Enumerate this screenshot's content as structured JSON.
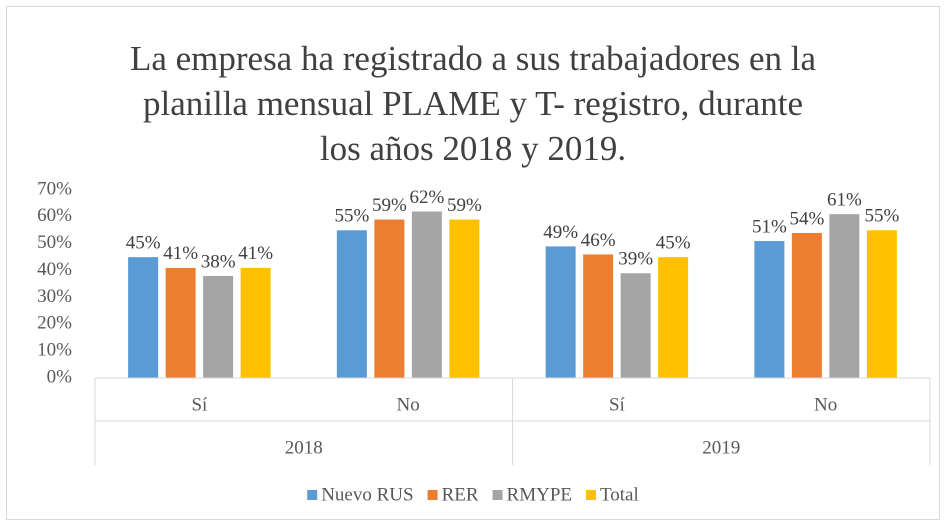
{
  "chart_data": {
    "type": "bar",
    "title": [
      "La empresa ha registrado a sus trabajadores en la",
      "planilla mensual PLAME y T- registro, durante",
      "los años 2018 y 2019."
    ],
    "categories": [
      "Sí",
      "No",
      "Sí",
      "No"
    ],
    "category_groups": [
      "2018",
      "2019"
    ],
    "series": [
      {
        "name": "Nuevo RUS",
        "color": "#5b9bd5",
        "values": [
          45,
          55,
          49,
          51
        ],
        "value_labels": [
          "45%",
          "55%",
          "49%",
          "51%"
        ]
      },
      {
        "name": "RER",
        "color": "#ed7d31",
        "values": [
          41,
          59,
          46,
          54
        ],
        "value_labels": [
          "41%",
          "59%",
          "46%",
          "54%"
        ]
      },
      {
        "name": "RMYPE",
        "color": "#a5a5a5",
        "values": [
          38,
          62,
          39,
          61
        ],
        "value_labels": [
          "38%",
          "62%",
          "39%",
          "61%"
        ]
      },
      {
        "name": "Total",
        "color": "#ffc000",
        "values": [
          41,
          59,
          45,
          55
        ],
        "value_labels": [
          "41%",
          "59%",
          "45%",
          "55%"
        ]
      }
    ],
    "ylim": [
      0,
      70
    ],
    "yticks": [
      {
        "value": 0,
        "label": "0%"
      },
      {
        "value": 10,
        "label": "10%"
      },
      {
        "value": 20,
        "label": "20%"
      },
      {
        "value": 30,
        "label": "30%"
      },
      {
        "value": 40,
        "label": "40%"
      },
      {
        "value": 50,
        "label": "50%"
      },
      {
        "value": 60,
        "label": "60%"
      },
      {
        "value": 70,
        "label": "70%"
      }
    ],
    "grid": false,
    "legend": "bottom"
  }
}
